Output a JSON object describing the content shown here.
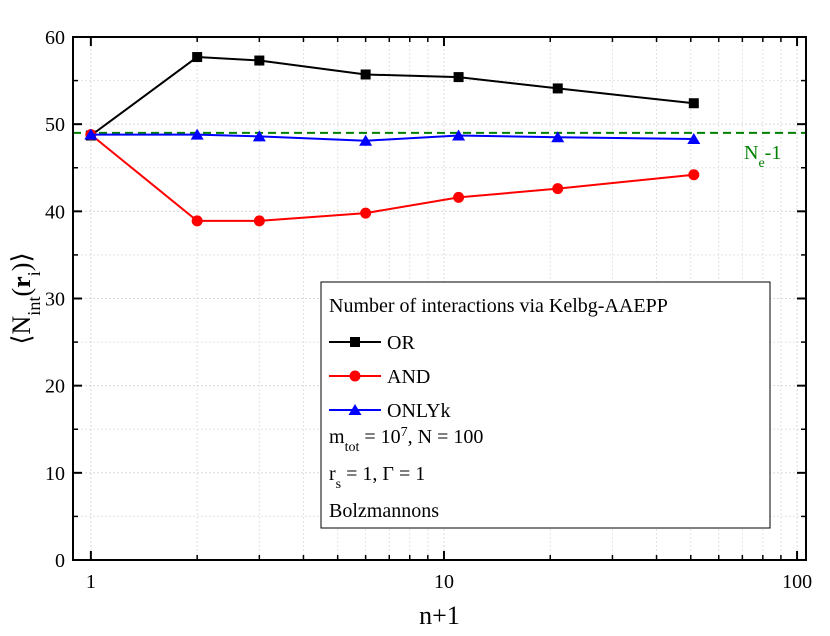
{
  "chart_data": {
    "type": "line",
    "x_label": "n+1",
    "y_label_parts": [
      {
        "text": "⟨N"
      },
      {
        "text": "int",
        "style": "sub"
      },
      {
        "text": "("
      },
      {
        "text": "r",
        "style": "bold"
      },
      {
        "text": "i",
        "style": "sub"
      },
      {
        "text": ")⟩"
      }
    ],
    "x_log": true,
    "x": [
      1,
      2,
      3,
      6,
      11,
      21,
      51
    ],
    "series": [
      {
        "name": "OR",
        "color": "#000000",
        "marker": "square",
        "values": [
          48.7,
          57.7,
          57.3,
          55.7,
          55.4,
          54.1,
          52.4
        ]
      },
      {
        "name": "AND",
        "color": "#ff0000",
        "marker": "circle",
        "values": [
          48.8,
          38.9,
          38.9,
          39.8,
          41.6,
          42.6,
          44.2
        ]
      },
      {
        "name": "ONLYk",
        "color": "#0000ff",
        "marker": "triangle",
        "values": [
          48.8,
          48.8,
          48.6,
          48.1,
          48.7,
          48.5,
          48.3
        ]
      }
    ],
    "reference_line": {
      "value": 49,
      "color": "#008000",
      "label_parts": [
        {
          "text": "N"
        },
        {
          "text": "e",
          "style": "sub"
        },
        {
          "text": "-1"
        }
      ]
    },
    "xlim": [
      0.89,
      106
    ],
    "ylim": [
      0,
      60
    ],
    "xticks": [
      1,
      10,
      100
    ],
    "yticks": [
      0,
      10,
      20,
      30,
      40,
      50,
      60
    ],
    "grid": true,
    "legend_title": "Number of interactions via Kelbg-AAEPP",
    "legend_position": "lower-right",
    "annotations": [
      [
        {
          "text": "m"
        },
        {
          "text": "tot",
          "style": "sub"
        },
        {
          "text": " = 10"
        },
        {
          "text": "7",
          "style": "sup"
        },
        {
          "text": ", N = 100"
        }
      ],
      [
        {
          "text": "r"
        },
        {
          "text": "s",
          "style": "sub"
        },
        {
          "text": " = 1, Γ = 1"
        }
      ],
      [
        {
          "text": "Bolzmannons"
        }
      ]
    ]
  }
}
